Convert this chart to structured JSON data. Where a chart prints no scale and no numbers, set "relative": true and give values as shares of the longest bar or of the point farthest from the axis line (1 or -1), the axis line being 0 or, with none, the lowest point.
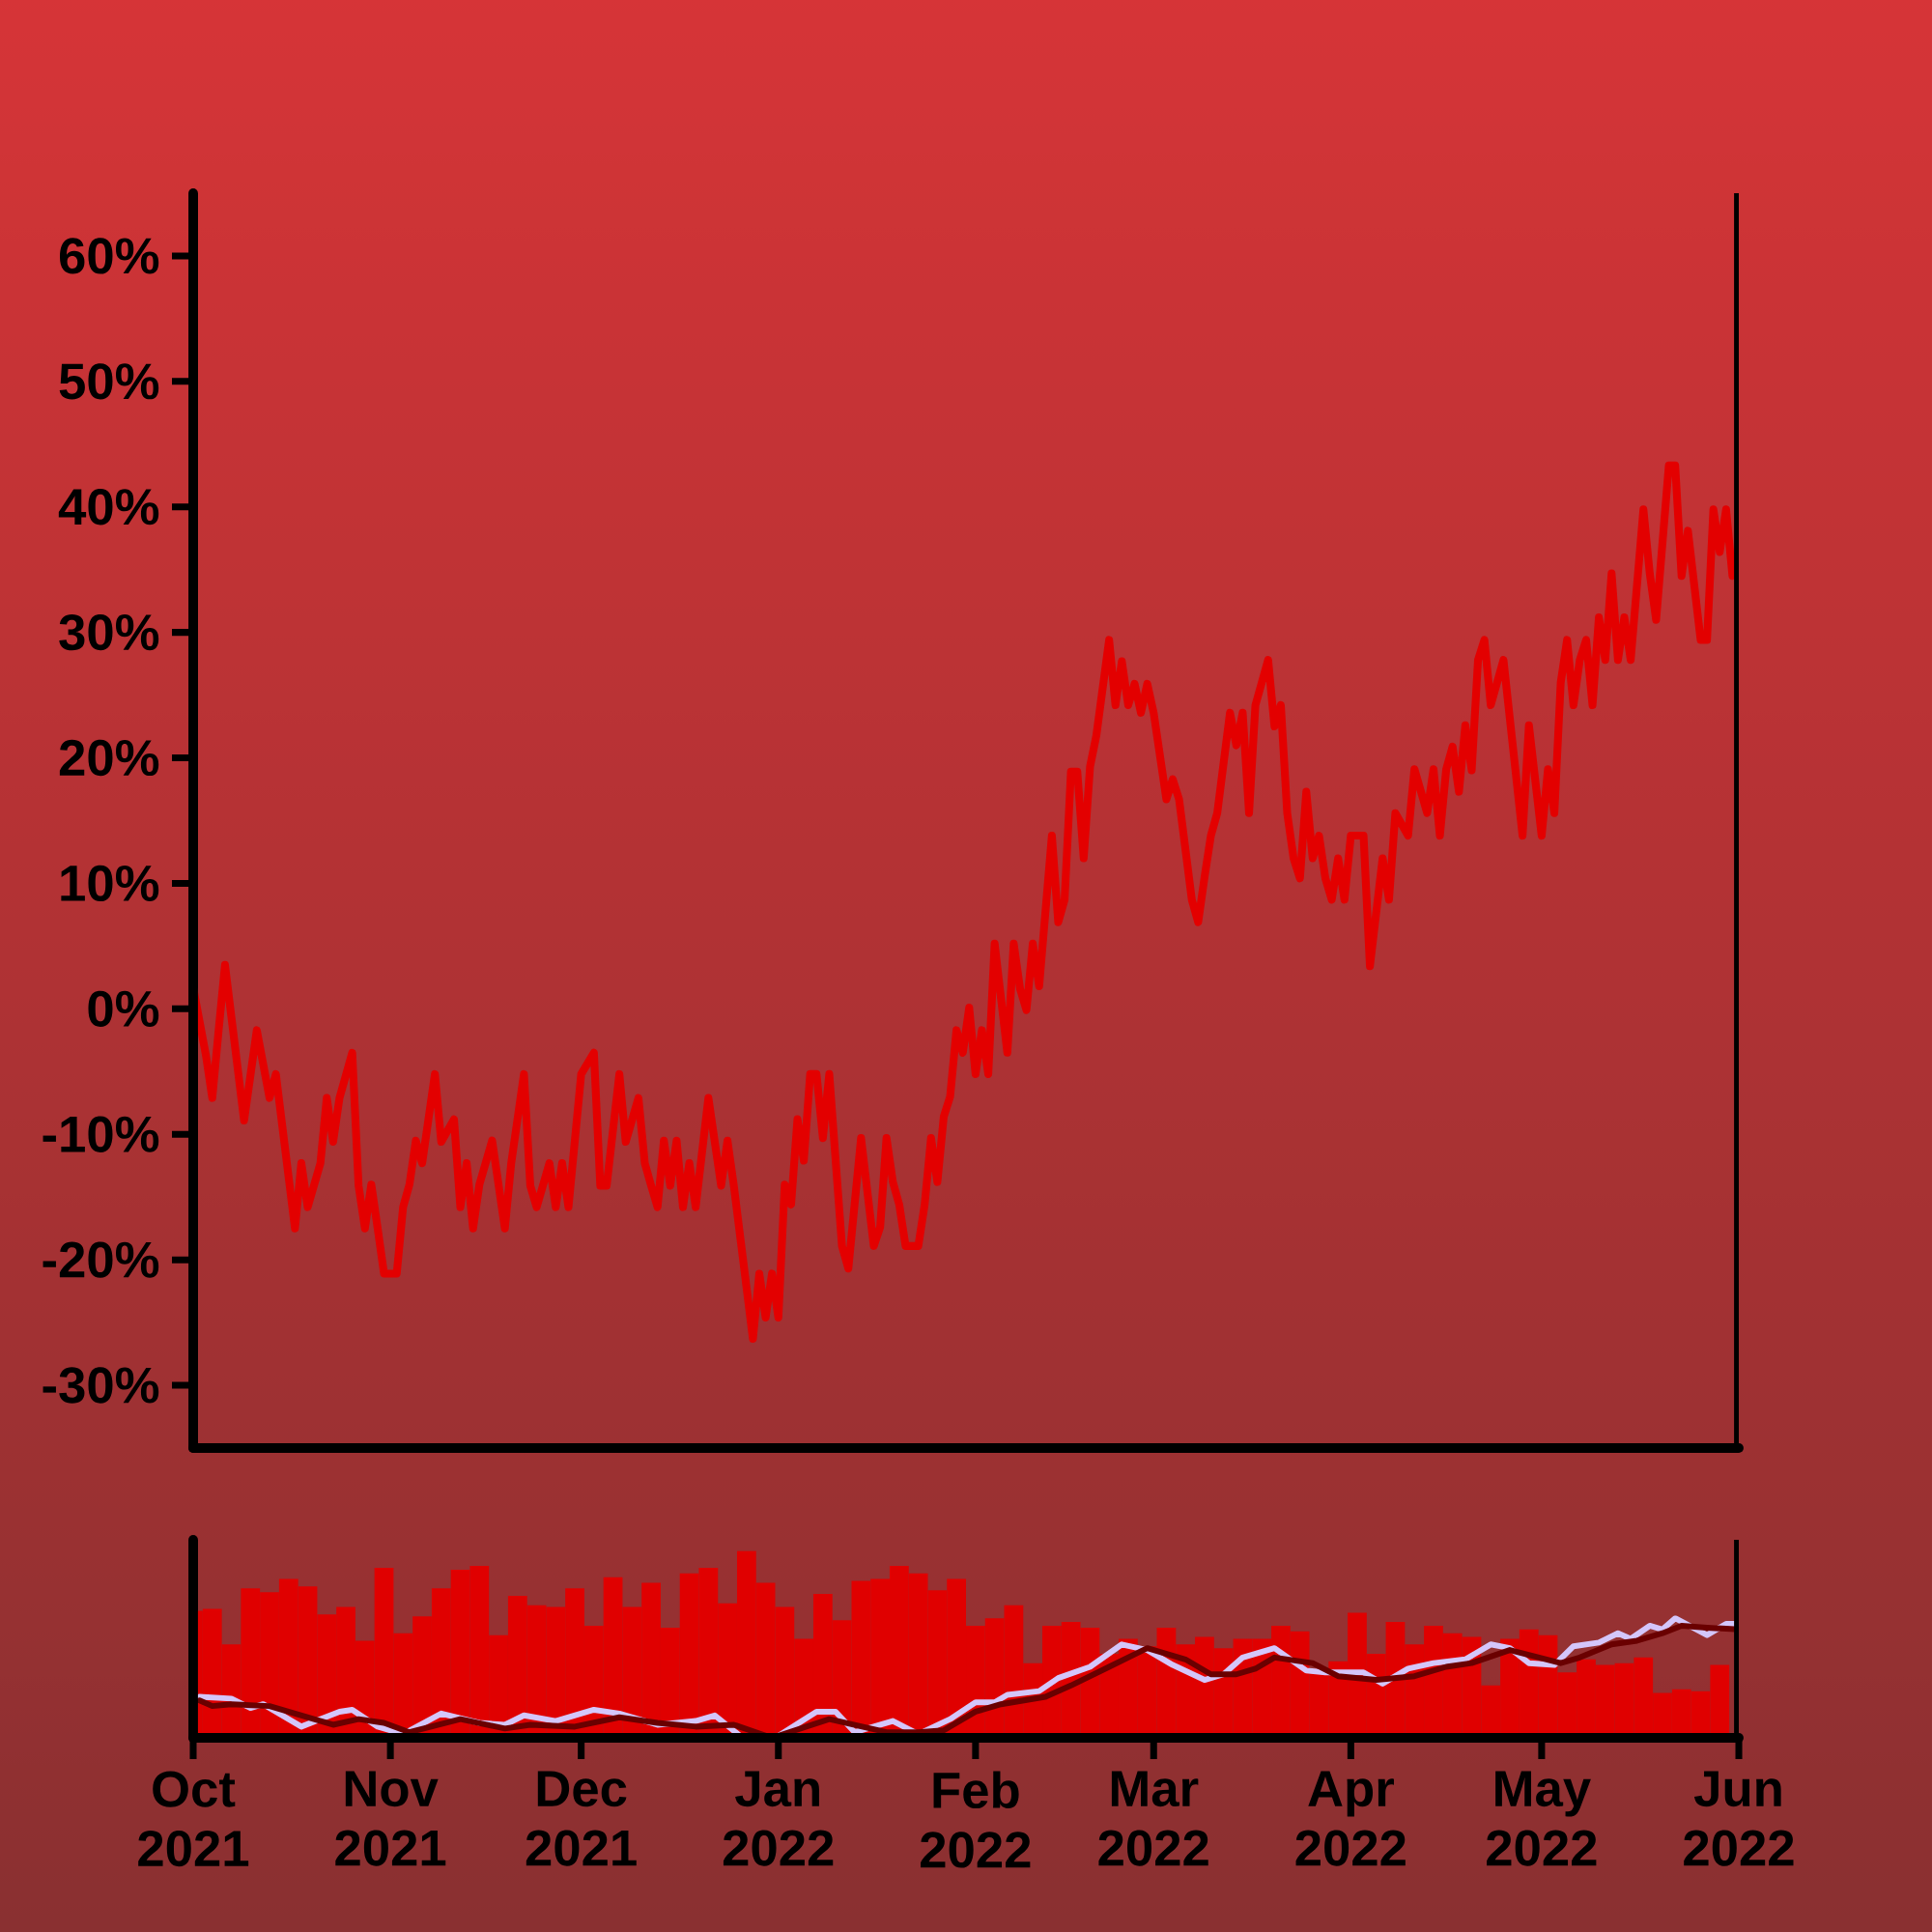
{
  "chart_data": [
    {
      "type": "line",
      "xlim": [
        "2021-10-01",
        "2022-06-01"
      ],
      "ylim": [
        -35,
        65
      ],
      "yticks": [
        {
          "value": -30,
          "label": "-30%"
        },
        {
          "value": -20,
          "label": "-20%"
        },
        {
          "value": -10,
          "label": "-10%"
        },
        {
          "value": 0,
          "label": "0%"
        },
        {
          "value": 10,
          "label": "10%"
        },
        {
          "value": 20,
          "label": "20%"
        },
        {
          "value": 30,
          "label": "30%"
        },
        {
          "value": 40,
          "label": "40%"
        },
        {
          "value": 50,
          "label": "50%"
        },
        {
          "value": 60,
          "label": "60%"
        }
      ],
      "tick_labels": "y",
      "series": [
        {
          "color": "#e30000",
          "x": [
            "2021-10-01",
            "2021-10-03",
            "2021-10-04",
            "2021-10-05",
            "2021-10-06",
            "2021-10-09",
            "2021-10-11",
            "2021-10-13",
            "2021-10-14",
            "2021-10-17",
            "2021-10-18",
            "2021-10-19",
            "2021-10-21",
            "2021-10-22",
            "2021-10-23",
            "2021-10-24",
            "2021-10-26",
            "2021-10-27",
            "2021-10-28",
            "2021-10-29",
            "2021-10-30",
            "2021-10-31",
            "2021-11-02",
            "2021-11-03",
            "2021-11-04",
            "2021-11-05",
            "2021-11-06",
            "2021-11-08",
            "2021-11-09",
            "2021-11-11",
            "2021-11-12",
            "2021-11-13",
            "2021-11-14",
            "2021-11-15",
            "2021-11-17",
            "2021-11-19",
            "2021-11-20",
            "2021-11-22",
            "2021-11-23",
            "2021-11-24",
            "2021-11-26",
            "2021-11-27",
            "2021-11-28",
            "2021-11-29",
            "2021-11-30",
            "2021-12-01",
            "2021-12-03",
            "2021-12-04",
            "2021-12-05",
            "2021-12-07",
            "2021-12-08",
            "2021-12-10",
            "2021-12-11",
            "2021-12-12",
            "2021-12-13",
            "2021-12-14",
            "2021-12-15",
            "2021-12-16",
            "2021-12-17",
            "2021-12-18",
            "2021-12-19",
            "2021-12-21",
            "2021-12-23",
            "2021-12-24",
            "2021-12-25",
            "2021-12-28",
            "2021-12-29",
            "2021-12-30",
            "2021-12-31",
            "2022-01-01",
            "2022-01-02",
            "2022-01-03",
            "2022-01-04",
            "2022-01-05",
            "2022-01-06",
            "2022-01-07",
            "2022-01-08",
            "2022-01-09",
            "2022-01-11",
            "2022-01-12",
            "2022-01-14",
            "2022-01-16",
            "2022-01-17",
            "2022-01-18",
            "2022-01-19",
            "2022-01-20",
            "2022-01-21",
            "2022-01-23",
            "2022-01-24",
            "2022-01-25",
            "2022-01-26",
            "2022-01-27",
            "2022-01-28",
            "2022-01-29",
            "2022-01-30",
            "2022-01-31",
            "2022-02-01",
            "2022-02-02",
            "2022-02-03",
            "2022-02-04",
            "2022-02-06",
            "2022-02-07",
            "2022-02-08",
            "2022-02-09",
            "2022-02-10",
            "2022-02-11",
            "2022-02-13",
            "2022-02-14",
            "2022-02-15",
            "2022-02-16",
            "2022-02-17",
            "2022-02-18",
            "2022-02-19",
            "2022-02-20",
            "2022-02-22",
            "2022-02-23",
            "2022-02-24",
            "2022-02-25",
            "2022-02-26",
            "2022-02-27",
            "2022-02-28",
            "2022-03-01",
            "2022-03-03",
            "2022-03-04",
            "2022-03-05",
            "2022-03-07",
            "2022-03-08",
            "2022-03-09",
            "2022-03-10",
            "2022-03-11",
            "2022-03-13",
            "2022-03-14",
            "2022-03-15",
            "2022-03-16",
            "2022-03-17",
            "2022-03-18",
            "2022-03-19",
            "2022-03-20",
            "2022-03-21",
            "2022-03-22",
            "2022-03-23",
            "2022-03-24",
            "2022-03-25",
            "2022-03-26",
            "2022-03-27",
            "2022-03-28",
            "2022-03-29",
            "2022-03-30",
            "2022-03-31",
            "2022-04-01",
            "2022-04-03",
            "2022-04-04",
            "2022-04-06",
            "2022-04-07",
            "2022-04-08",
            "2022-04-10",
            "2022-04-11",
            "2022-04-13",
            "2022-04-14",
            "2022-04-15",
            "2022-04-16",
            "2022-04-17",
            "2022-04-18",
            "2022-04-19",
            "2022-04-20",
            "2022-04-21",
            "2022-04-22",
            "2022-04-23",
            "2022-04-24",
            "2022-04-25",
            "2022-04-28",
            "2022-04-29",
            "2022-05-01",
            "2022-05-02",
            "2022-05-03",
            "2022-05-04",
            "2022-05-05",
            "2022-05-06",
            "2022-05-07",
            "2022-05-08",
            "2022-05-09",
            "2022-05-10",
            "2022-05-11",
            "2022-05-12",
            "2022-05-13",
            "2022-05-14",
            "2022-05-15",
            "2022-05-17",
            "2022-05-18",
            "2022-05-19",
            "2022-05-21",
            "2022-05-22",
            "2022-05-23",
            "2022-05-24",
            "2022-05-26",
            "2022-05-27",
            "2022-05-28",
            "2022-05-29",
            "2022-05-30",
            "2022-05-31",
            "2022-06-01"
          ],
          "values": [
            1.7,
            -3.7,
            -7.1,
            -1.7,
            3.5,
            -8.9,
            -1.7,
            -7.1,
            -5.2,
            -17.5,
            -12.3,
            -15.8,
            -12.3,
            -7.1,
            -10.6,
            -7.1,
            -3.5,
            -14.1,
            -17.5,
            -14.0,
            -17.5,
            -21.1,
            -21.1,
            -15.8,
            -14.0,
            -10.5,
            -12.3,
            -5.2,
            -10.6,
            -8.8,
            -15.8,
            -12.3,
            -17.5,
            -14.0,
            -10.5,
            -17.5,
            -12.3,
            -5.2,
            -14.1,
            -15.8,
            -12.3,
            -15.8,
            -12.3,
            -15.8,
            -10.5,
            -5.2,
            -3.5,
            -14.1,
            -14.1,
            -5.2,
            -10.6,
            -7.1,
            -12.3,
            -14.1,
            -15.8,
            -10.5,
            -14.1,
            -10.5,
            -15.8,
            -12.3,
            -15.8,
            -7.1,
            -14.1,
            -10.5,
            -14.1,
            -26.3,
            -21.1,
            -24.6,
            -21.1,
            -24.6,
            -14.0,
            -15.6,
            -8.8,
            -12.1,
            -5.2,
            -5.2,
            -10.3,
            -5.2,
            -18.9,
            -20.7,
            -10.3,
            -18.9,
            -17.4,
            -10.3,
            -13.8,
            -15.6,
            -18.9,
            -18.9,
            -15.6,
            -10.3,
            -13.8,
            -8.6,
            -7.0,
            -1.7,
            -3.5,
            0.1,
            -5.2,
            -1.7,
            -5.2,
            5.2,
            -3.5,
            5.2,
            1.6,
            -0.1,
            5.2,
            1.8,
            13.8,
            6.9,
            8.7,
            18.9,
            18.9,
            12.0,
            19.3,
            21.8,
            29.4,
            24.2,
            27.7,
            24.2,
            25.9,
            23.6,
            25.9,
            23.6,
            16.7,
            18.3,
            16.7,
            8.7,
            6.9,
            10.5,
            13.8,
            15.6,
            23.6,
            21.0,
            23.6,
            15.6,
            24.2,
            26.0,
            27.8,
            22.5,
            24.2,
            15.6,
            12.0,
            10.4,
            17.3,
            12.0,
            13.8,
            10.4,
            8.7,
            12.0,
            8.7,
            13.8,
            13.8,
            3.4,
            12.0,
            8.7,
            15.6,
            13.8,
            19.1,
            15.6,
            19.1,
            13.8,
            19.1,
            20.9,
            17.3,
            22.6,
            19.0,
            27.8,
            29.4,
            24.2,
            26.0,
            27.8,
            13.8,
            22.6,
            13.8,
            19.1,
            15.6,
            26.0,
            29.4,
            24.2,
            27.8,
            29.4,
            24.2,
            31.2,
            27.8,
            34.7,
            27.8,
            31.2,
            27.8,
            39.8,
            34.7,
            31.0,
            43.3,
            43.3,
            34.5,
            38.1,
            29.4,
            29.4,
            39.8,
            36.4,
            39.8,
            34.5,
            36.4
          ]
        }
      ]
    },
    {
      "type": "bar",
      "relative": true,
      "xlim": [
        "2021-10-01",
        "2022-06-01"
      ],
      "xticks": [
        {
          "value": "2021-10-01",
          "label": "Oct 2021"
        },
        {
          "value": "2021-11-01",
          "label": "Nov 2021"
        },
        {
          "value": "2021-12-01",
          "label": "Dec 2021"
        },
        {
          "value": "2022-01-01",
          "label": "Jan 2022"
        },
        {
          "value": "2022-02-01",
          "label": "Feb 2022"
        },
        {
          "value": "2022-03-01",
          "label": "Mar 2022"
        },
        {
          "value": "2022-04-01",
          "label": "Apr 2022"
        },
        {
          "value": "2022-05-01",
          "label": "May 2022"
        },
        {
          "value": "2022-06-01",
          "label": "Jun 2022"
        }
      ],
      "tick_labels": "x",
      "series": [
        {
          "type": "bar",
          "color": "#e00000",
          "x": [
            "2021-10-01",
            "2021-10-04",
            "2021-10-07",
            "2021-10-10",
            "2021-10-13",
            "2021-10-16",
            "2021-10-19",
            "2021-10-22",
            "2021-10-25",
            "2021-10-28",
            "2021-10-31",
            "2021-11-03",
            "2021-11-06",
            "2021-11-09",
            "2021-11-12",
            "2021-11-15",
            "2021-11-18",
            "2021-11-21",
            "2021-11-24",
            "2021-11-27",
            "2021-11-30",
            "2021-12-03",
            "2021-12-06",
            "2021-12-09",
            "2021-12-12",
            "2021-12-15",
            "2021-12-18",
            "2021-12-21",
            "2021-12-24",
            "2021-12-27",
            "2021-12-30",
            "2022-01-02",
            "2022-01-05",
            "2022-01-08",
            "2022-01-11",
            "2022-01-14",
            "2022-01-17",
            "2022-01-20",
            "2022-01-23",
            "2022-01-26",
            "2022-01-29",
            "2022-02-01",
            "2022-02-04",
            "2022-02-07",
            "2022-02-10",
            "2022-02-13",
            "2022-02-16",
            "2022-02-19",
            "2022-02-22",
            "2022-02-25",
            "2022-02-28",
            "2022-03-03",
            "2022-03-06",
            "2022-03-09",
            "2022-03-12",
            "2022-03-15",
            "2022-03-18",
            "2022-03-21",
            "2022-03-24",
            "2022-03-27",
            "2022-03-30",
            "2022-04-02",
            "2022-04-05",
            "2022-04-08",
            "2022-04-11",
            "2022-04-14",
            "2022-04-17",
            "2022-04-20",
            "2022-04-23",
            "2022-04-26",
            "2022-04-29",
            "2022-05-02",
            "2022-05-05",
            "2022-05-08",
            "2022-05-11",
            "2022-05-14",
            "2022-05-17",
            "2022-05-20",
            "2022-05-23",
            "2022-05-26",
            "2022-05-29"
          ],
          "values": [
            0.68,
            0.69,
            0.5,
            0.8,
            0.78,
            0.85,
            0.81,
            0.66,
            0.7,
            0.52,
            0.91,
            0.56,
            0.65,
            0.8,
            0.9,
            0.92,
            0.55,
            0.76,
            0.71,
            0.7,
            0.8,
            0.6,
            0.86,
            0.7,
            0.83,
            0.59,
            0.88,
            0.91,
            0.72,
            1.0,
            0.83,
            0.7,
            0.53,
            0.77,
            0.63,
            0.84,
            0.85,
            0.92,
            0.88,
            0.79,
            0.85,
            0.6,
            0.64,
            0.71,
            0.4,
            0.6,
            0.62,
            0.59,
            0.45,
            0.53,
            0.49,
            0.59,
            0.5,
            0.54,
            0.48,
            0.53,
            0.53,
            0.6,
            0.57,
            0.37,
            0.41,
            0.67,
            0.45,
            0.62,
            0.5,
            0.6,
            0.56,
            0.54,
            0.28,
            0.53,
            0.58,
            0.55,
            0.35,
            0.42,
            0.39,
            0.4,
            0.43,
            0.24,
            0.26,
            0.25,
            0.39
          ]
        },
        {
          "type": "line",
          "color": "#d4c6fb",
          "x": [
            "2021-10-02",
            "2021-10-07",
            "2021-10-10",
            "2021-10-12",
            "2021-10-18",
            "2021-10-24",
            "2021-10-26",
            "2021-10-30",
            "2021-11-03",
            "2021-11-09",
            "2021-11-15",
            "2021-11-19",
            "2021-11-22",
            "2021-11-27",
            "2021-12-03",
            "2021-12-07",
            "2021-12-13",
            "2021-12-19",
            "2021-12-22",
            "2021-12-26",
            "2022-01-01",
            "2022-01-07",
            "2022-01-10",
            "2022-01-13",
            "2022-01-19",
            "2022-01-23",
            "2022-01-28",
            "2022-02-01",
            "2022-02-04",
            "2022-02-06",
            "2022-02-11",
            "2022-02-14",
            "2022-02-19",
            "2022-02-24",
            "2022-02-28",
            "2022-03-04",
            "2022-03-09",
            "2022-03-12",
            "2022-03-15",
            "2022-03-20",
            "2022-03-25",
            "2022-03-28",
            "2022-04-03",
            "2022-04-06",
            "2022-04-10",
            "2022-04-14",
            "2022-04-19",
            "2022-04-23",
            "2022-04-26",
            "2022-04-29",
            "2022-05-03",
            "2022-05-06",
            "2022-05-10",
            "2022-05-13",
            "2022-05-15",
            "2022-05-18",
            "2022-05-20",
            "2022-05-22",
            "2022-05-27",
            "2022-05-30",
            "2022-06-01"
          ],
          "values": [
            0.22,
            0.21,
            0.16,
            0.18,
            0.06,
            0.14,
            0.15,
            0.06,
            0.02,
            0.13,
            0.08,
            0.07,
            0.12,
            0.09,
            0.15,
            0.13,
            0.07,
            0.09,
            0.12,
            0.01,
            0.01,
            0.14,
            0.14,
            0.03,
            0.09,
            0.02,
            0.1,
            0.19,
            0.19,
            0.23,
            0.25,
            0.32,
            0.38,
            0.5,
            0.47,
            0.39,
            0.31,
            0.34,
            0.43,
            0.48,
            0.36,
            0.35,
            0.35,
            0.29,
            0.37,
            0.4,
            0.42,
            0.5,
            0.48,
            0.4,
            0.39,
            0.49,
            0.51,
            0.56,
            0.53,
            0.6,
            0.58,
            0.64,
            0.55,
            0.61,
            0.61
          ]
        },
        {
          "type": "line",
          "color": "#6a0000",
          "x": [
            "2021-10-02",
            "2021-10-04",
            "2021-10-07",
            "2021-10-13",
            "2021-10-18",
            "2021-10-23",
            "2021-10-27",
            "2021-10-31",
            "2021-11-04",
            "2021-11-12",
            "2021-11-19",
            "2021-11-23",
            "2021-11-30",
            "2021-12-07",
            "2021-12-13",
            "2021-12-19",
            "2021-12-25",
            "2021-12-31",
            "2022-01-09",
            "2022-01-18",
            "2022-01-23",
            "2022-01-27",
            "2022-02-01",
            "2022-02-05",
            "2022-02-12",
            "2022-02-16",
            "2022-02-22",
            "2022-02-28",
            "2022-03-06",
            "2022-03-10",
            "2022-03-14",
            "2022-03-17",
            "2022-03-20",
            "2022-03-26",
            "2022-03-30",
            "2022-04-05",
            "2022-04-11",
            "2022-04-16",
            "2022-04-20",
            "2022-04-26",
            "2022-05-04",
            "2022-05-07",
            "2022-05-12",
            "2022-05-16",
            "2022-05-20",
            "2022-05-23",
            "2022-05-27",
            "2022-06-01"
          ],
          "values": [
            0.2,
            0.17,
            0.18,
            0.17,
            0.12,
            0.07,
            0.1,
            0.08,
            0.03,
            0.1,
            0.05,
            0.07,
            0.06,
            0.11,
            0.08,
            0.06,
            0.07,
            0.0,
            0.1,
            0.03,
            0.03,
            0.04,
            0.14,
            0.18,
            0.22,
            0.28,
            0.38,
            0.48,
            0.42,
            0.34,
            0.34,
            0.37,
            0.43,
            0.4,
            0.33,
            0.31,
            0.33,
            0.38,
            0.4,
            0.47,
            0.4,
            0.43,
            0.5,
            0.52,
            0.56,
            0.6,
            0.59,
            0.58
          ]
        }
      ]
    }
  ]
}
